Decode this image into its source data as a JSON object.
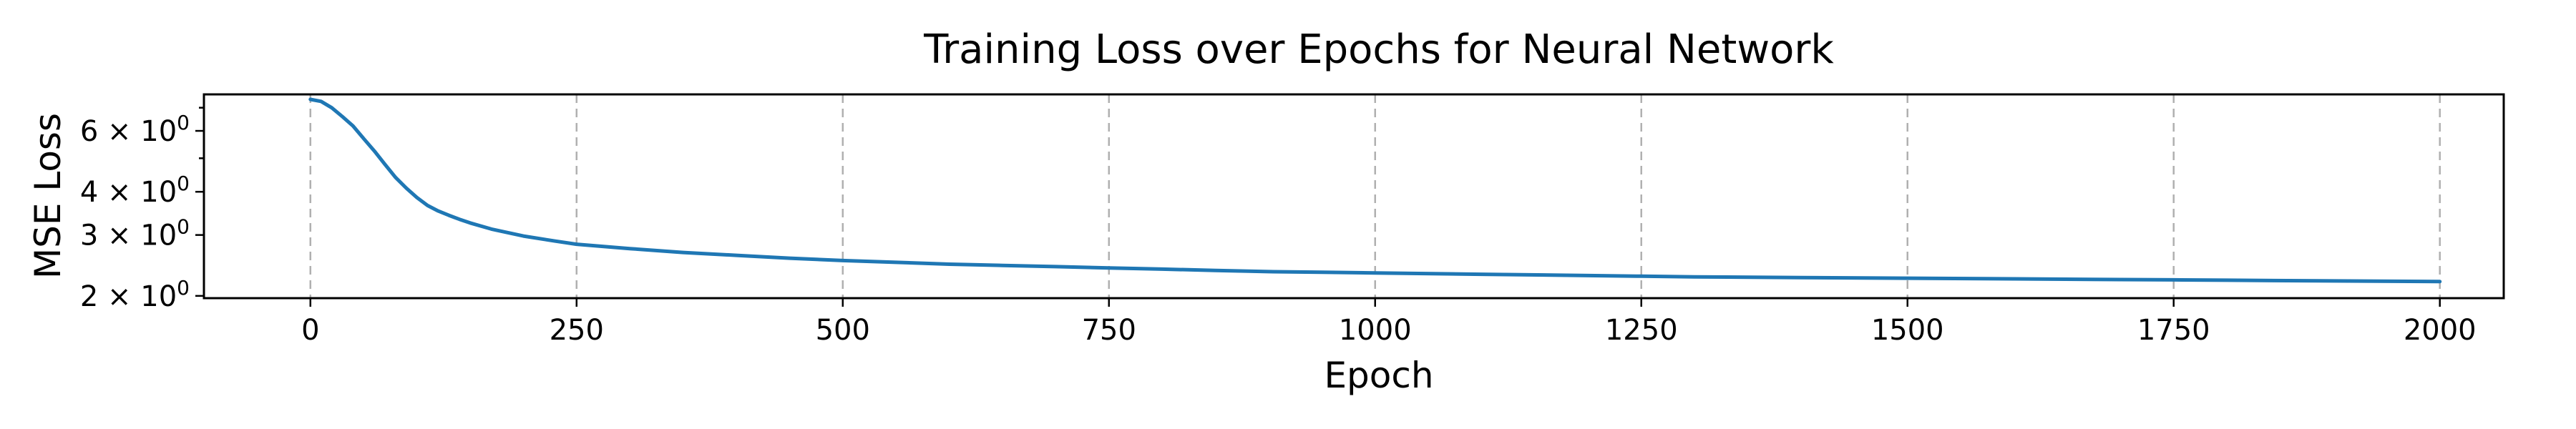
{
  "chart_data": {
    "type": "line",
    "title": "Training Loss over Epochs for Neural Network",
    "xlabel": "Epoch",
    "ylabel": "MSE Loss",
    "xlim": [
      -100,
      2060
    ],
    "ylim": [
      1.97,
      7.65
    ],
    "yscale": "log",
    "grid": "x-axis only, dashed",
    "legend": "none",
    "color": "#1f77b4",
    "x_ticks": [
      {
        "value": 0,
        "label": "0"
      },
      {
        "value": 250,
        "label": "250"
      },
      {
        "value": 500,
        "label": "500"
      },
      {
        "value": 750,
        "label": "750"
      },
      {
        "value": 1000,
        "label": "1000"
      },
      {
        "value": 1250,
        "label": "1250"
      },
      {
        "value": 1500,
        "label": "1500"
      },
      {
        "value": 1750,
        "label": "1750"
      },
      {
        "value": 2000,
        "label": "2000"
      }
    ],
    "y_ticks": [
      {
        "value": 2,
        "base": "2 × 10",
        "exp": "0"
      },
      {
        "value": 3,
        "base": "3 × 10",
        "exp": "0"
      },
      {
        "value": 4,
        "base": "4 × 10",
        "exp": "0"
      },
      {
        "value": 6,
        "base": "6 × 10",
        "exp": "0"
      }
    ],
    "y_minor_ticks": [
      5,
      7
    ],
    "series": [
      {
        "x": [
          0,
          10,
          20,
          30,
          40,
          50,
          60,
          70,
          80,
          90,
          100,
          110,
          120,
          130,
          140,
          150,
          170,
          200,
          230,
          250,
          300,
          350,
          400,
          450,
          500,
          550,
          600,
          650,
          700,
          750,
          800,
          850,
          900,
          950,
          1000,
          1100,
          1200,
          1250,
          1300,
          1400,
          1500,
          1600,
          1700,
          1750,
          1800,
          1900,
          2000
        ],
        "y": [
          7.4,
          7.3,
          7.0,
          6.6,
          6.2,
          5.7,
          5.25,
          4.8,
          4.4,
          4.1,
          3.85,
          3.65,
          3.52,
          3.42,
          3.33,
          3.25,
          3.12,
          2.98,
          2.88,
          2.82,
          2.74,
          2.67,
          2.62,
          2.57,
          2.53,
          2.5,
          2.47,
          2.45,
          2.43,
          2.41,
          2.39,
          2.37,
          2.35,
          2.34,
          2.33,
          2.31,
          2.29,
          2.28,
          2.27,
          2.26,
          2.25,
          2.24,
          2.23,
          2.225,
          2.22,
          2.21,
          2.2
        ]
      }
    ]
  }
}
